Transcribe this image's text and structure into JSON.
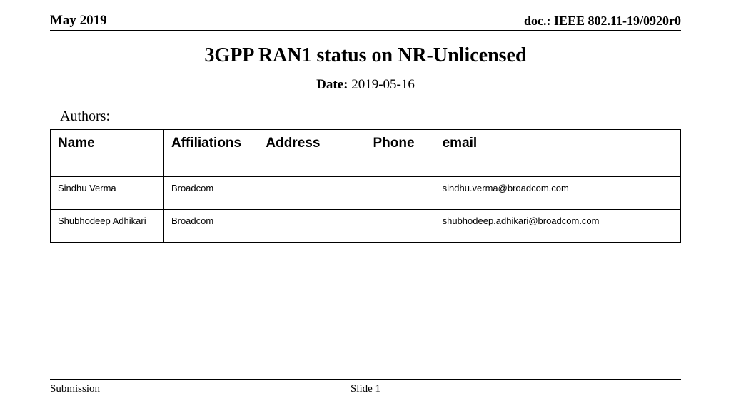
{
  "header": {
    "left": "May 2019",
    "right": "doc.: IEEE 802.11-19/0920r0"
  },
  "title": "3GPP RAN1 status on NR-Unlicensed",
  "date": {
    "label": "Date:",
    "value": " 2019-05-16"
  },
  "authors_label": "Authors:",
  "table": {
    "columns": [
      "Name",
      "Affiliations",
      "Address",
      "Phone",
      "email"
    ],
    "column_widths_pct": [
      18,
      15,
      17,
      11,
      39
    ],
    "header_fontsize": 19,
    "cell_fontsize": 13,
    "border_color": "#000000",
    "rows": [
      {
        "name": "Sindhu Verma",
        "affil": "Broadcom",
        "address": "",
        "phone": "",
        "email": "sindhu.verma@broadcom.com"
      },
      {
        "name": "Shubhodeep Adhikari",
        "affil": "Broadcom",
        "address": "",
        "phone": "",
        "email": "shubhodeep.adhikari@broadcom.com"
      }
    ]
  },
  "footer": {
    "left": "Submission",
    "center": "Slide 1"
  },
  "style": {
    "background_color": "#ffffff",
    "text_color": "#000000",
    "rule_color": "#000000",
    "title_fontsize": 28,
    "body_font": "Times New Roman",
    "table_font": "Arial"
  }
}
